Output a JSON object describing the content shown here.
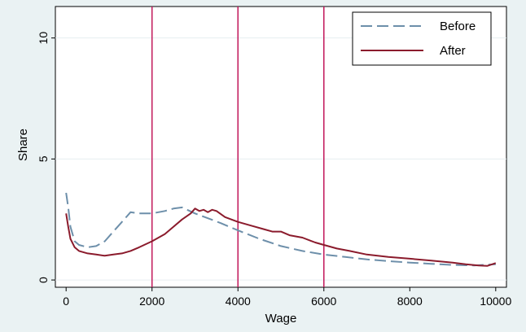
{
  "chart_data": {
    "type": "line",
    "xlabel": "Wage",
    "ylabel": "Share",
    "xlim": [
      -250,
      10250
    ],
    "ylim": [
      -0.3,
      11.3
    ],
    "xticks": [
      0,
      2000,
      4000,
      6000,
      8000,
      10000
    ],
    "xtick_labels": [
      "0",
      "2000",
      "4000",
      "6000",
      "8000",
      "10000"
    ],
    "yticks": [
      0,
      5,
      10
    ],
    "ytick_labels": [
      "0",
      "5",
      "10"
    ],
    "grid": true,
    "legend_position": "top-right",
    "vertical_lines": [
      2000,
      4000,
      6000
    ],
    "colors": {
      "before": "#6d8faa",
      "after": "#8b1b2c",
      "reference_lines": "#c2185b",
      "plot_background": "#ffffff",
      "page_background": "#eaf2f3",
      "grid": "#e6eef0"
    },
    "series": [
      {
        "name": "Before",
        "style": "dashed",
        "x": [
          0,
          50,
          100,
          200,
          300,
          500,
          700,
          900,
          1100,
          1300,
          1500,
          1700,
          2000,
          2300,
          2500,
          2700,
          3000,
          3300,
          3600,
          4000,
          4500,
          5000,
          5500,
          6000,
          6500,
          7000,
          7500,
          8000,
          8500,
          9000,
          9500,
          10000
        ],
        "y": [
          3.6,
          3.0,
          2.2,
          1.6,
          1.45,
          1.35,
          1.4,
          1.6,
          2.0,
          2.4,
          2.8,
          2.75,
          2.75,
          2.85,
          2.95,
          3.0,
          2.75,
          2.55,
          2.35,
          2.05,
          1.7,
          1.4,
          1.2,
          1.05,
          0.95,
          0.85,
          0.78,
          0.72,
          0.67,
          0.62,
          0.6,
          0.65
        ]
      },
      {
        "name": "After",
        "style": "solid",
        "x": [
          0,
          50,
          100,
          200,
          300,
          500,
          700,
          900,
          1100,
          1300,
          1500,
          1700,
          2000,
          2300,
          2500,
          2700,
          2900,
          3000,
          3100,
          3200,
          3300,
          3400,
          3500,
          3700,
          4000,
          4300,
          4600,
          4800,
          5000,
          5200,
          5500,
          5800,
          6000,
          6300,
          6600,
          7000,
          7500,
          8000,
          8500,
          9000,
          9300,
          9600,
          9800,
          10000
        ],
        "y": [
          2.75,
          2.2,
          1.7,
          1.35,
          1.2,
          1.1,
          1.05,
          1.0,
          1.05,
          1.1,
          1.2,
          1.35,
          1.6,
          1.9,
          2.2,
          2.5,
          2.75,
          2.95,
          2.85,
          2.9,
          2.8,
          2.9,
          2.85,
          2.6,
          2.4,
          2.25,
          2.1,
          2.0,
          2.0,
          1.85,
          1.75,
          1.55,
          1.45,
          1.3,
          1.2,
          1.05,
          0.95,
          0.88,
          0.8,
          0.72,
          0.65,
          0.6,
          0.58,
          0.7
        ]
      }
    ]
  }
}
